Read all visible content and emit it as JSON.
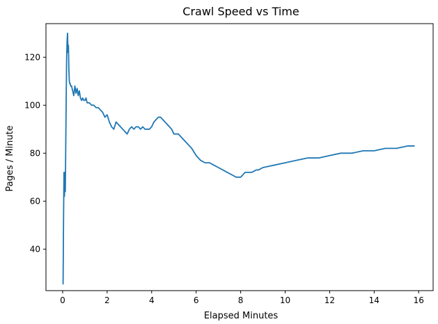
{
  "chart_data": {
    "type": "line",
    "title": "Crawl Speed vs Time",
    "xlabel": "Elapsed Minutes",
    "ylabel": "Pages / Minute",
    "xlim": [
      -0.75,
      16.65
    ],
    "ylim": [
      22.7,
      134.0
    ],
    "xticks": [
      0,
      2,
      4,
      6,
      8,
      10,
      12,
      14,
      16
    ],
    "yticks": [
      40,
      60,
      80,
      100,
      120
    ],
    "grid": false,
    "legend": "none",
    "line_color": "#1f77b4",
    "series": [
      {
        "name": "",
        "x": [
          0.02,
          0.04,
          0.06,
          0.08,
          0.1,
          0.12,
          0.14,
          0.16,
          0.18,
          0.2,
          0.22,
          0.24,
          0.26,
          0.28,
          0.3,
          0.32,
          0.34,
          0.36,
          0.4,
          0.45,
          0.5,
          0.55,
          0.6,
          0.65,
          0.7,
          0.75,
          0.8,
          0.85,
          0.9,
          0.95,
          1.0,
          1.05,
          1.1,
          1.2,
          1.3,
          1.4,
          1.5,
          1.6,
          1.7,
          1.8,
          1.9,
          2.0,
          2.1,
          2.2,
          2.3,
          2.4,
          2.5,
          2.6,
          2.7,
          2.8,
          2.9,
          3.0,
          3.1,
          3.2,
          3.3,
          3.4,
          3.5,
          3.6,
          3.7,
          3.8,
          3.9,
          4.0,
          4.1,
          4.2,
          4.3,
          4.4,
          4.5,
          4.6,
          4.7,
          4.8,
          4.9,
          5.0,
          5.2,
          5.4,
          5.6,
          5.8,
          6.0,
          6.2,
          6.4,
          6.6,
          6.8,
          7.0,
          7.2,
          7.4,
          7.6,
          7.8,
          8.0,
          8.1,
          8.2,
          8.3,
          8.4,
          8.5,
          8.7,
          8.8,
          9.0,
          9.5,
          10.0,
          10.5,
          11.0,
          11.5,
          12.0,
          12.5,
          13.0,
          13.5,
          14.0,
          14.5,
          15.0,
          15.5,
          15.8
        ],
        "y": [
          25.5,
          52,
          72,
          62,
          72,
          64,
          84,
          103,
          120,
          127,
          130,
          122,
          125,
          115,
          110,
          109,
          109,
          108,
          108,
          106,
          104,
          108,
          105,
          107,
          104,
          106,
          103,
          102,
          103,
          102,
          102,
          103,
          101,
          101,
          100,
          100,
          99,
          99,
          98,
          97,
          95,
          96,
          93,
          91,
          90,
          93,
          92,
          91,
          90,
          89,
          88,
          90,
          91,
          90,
          91,
          91,
          90,
          91,
          90,
          90,
          90,
          91,
          93,
          94,
          95,
          95,
          94,
          93,
          92,
          91,
          90,
          88,
          88,
          86,
          84,
          82,
          79,
          77,
          76,
          76,
          75,
          74,
          73,
          72,
          71,
          70,
          70,
          71,
          72,
          72,
          72,
          72,
          73,
          73,
          74,
          75,
          76,
          77,
          78,
          78,
          79,
          80,
          80,
          81,
          81,
          82,
          82,
          83,
          83
        ]
      }
    ]
  }
}
